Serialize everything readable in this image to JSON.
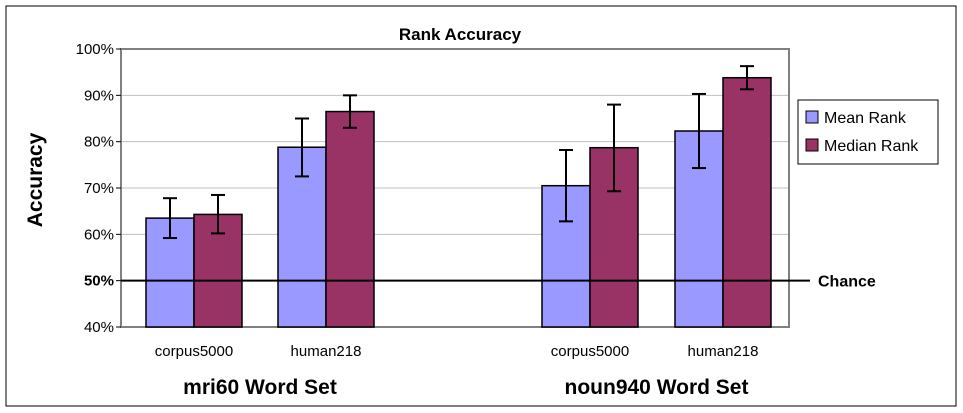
{
  "chart_data": {
    "type": "bar",
    "title": "Rank Accuracy",
    "ylabel": "Accuracy",
    "ylim": [
      40,
      100
    ],
    "yticks": [
      "40%",
      "50%",
      "60%",
      "70%",
      "80%",
      "90%",
      "100%"
    ],
    "grid": true,
    "legend_position": "right",
    "groups": [
      {
        "label": "mri60 Word Set",
        "categories": [
          "corpus5000",
          "human218"
        ]
      },
      {
        "label": "noun940 Word Set",
        "categories": [
          "corpus5000",
          "human218"
        ]
      }
    ],
    "series": [
      {
        "name": "Mean Rank",
        "color": "#9999ff",
        "values": [
          63.5,
          78.8,
          70.5,
          82.3
        ],
        "err_low": [
          59.2,
          72.5,
          62.8,
          74.3
        ],
        "err_high": [
          67.8,
          85.0,
          78.2,
          90.3
        ]
      },
      {
        "name": "Median Rank",
        "color": "#993366",
        "values": [
          64.3,
          86.5,
          78.7,
          93.8
        ],
        "err_low": [
          60.2,
          83.0,
          69.3,
          91.3
        ],
        "err_high": [
          68.5,
          90.0,
          88.0,
          96.3
        ]
      }
    ],
    "reference_line": {
      "value": 50,
      "label": "Chance"
    }
  }
}
